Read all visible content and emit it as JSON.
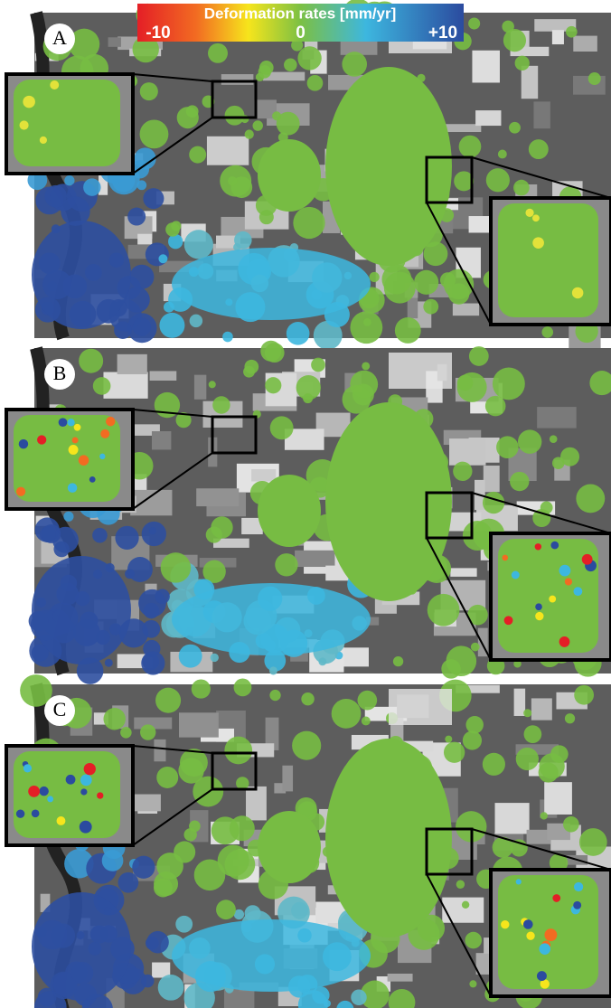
{
  "colorbar": {
    "title": "Deformation rates [mm/yr]",
    "lim": [
      -10,
      10
    ],
    "ticks": [
      -10,
      0,
      {
        "value": 10,
        "label": "+10"
      }
    ]
  },
  "panels": [
    {
      "label": "A"
    },
    {
      "label": "B"
    },
    {
      "label": "C"
    }
  ]
}
